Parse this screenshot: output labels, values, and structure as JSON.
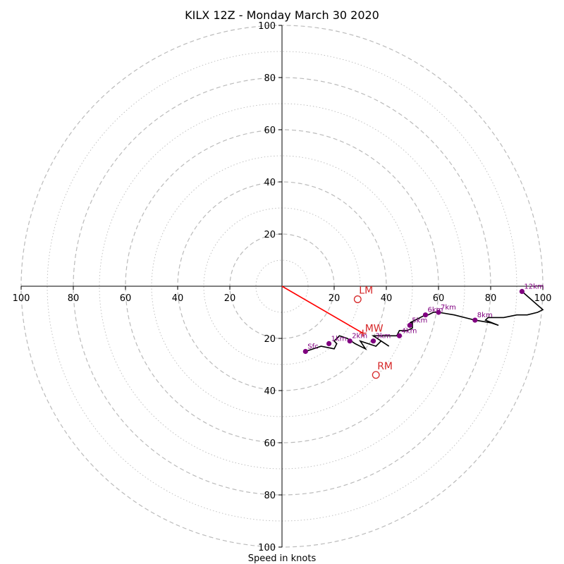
{
  "chart_data": {
    "type": "scatter",
    "title": "KILX 12Z - Monday March 30 2020",
    "xlabel": "Speed in knots",
    "ylabel": "",
    "xlim": [
      -100,
      100
    ],
    "ylim": [
      -100,
      100
    ],
    "grid": true,
    "tick_labels": {
      "x": [
        "100",
        "80",
        "60",
        "40",
        "20",
        "20",
        "40",
        "60",
        "80",
        "100"
      ],
      "y": [
        "100",
        "80",
        "60",
        "40",
        "20",
        "20",
        "40",
        "60",
        "80",
        "100"
      ]
    },
    "hodograph": {
      "x": [
        9,
        15,
        20,
        21,
        20,
        22,
        25,
        28,
        32,
        30,
        36,
        38,
        41,
        35,
        44,
        45,
        48,
        50,
        50,
        49,
        55,
        56,
        58,
        60,
        66,
        74,
        80,
        83,
        78,
        79,
        85,
        90,
        94,
        98,
        100,
        92
      ],
      "y": [
        -25,
        -23,
        -24,
        -22,
        -21,
        -19,
        -20,
        -22,
        -24,
        -21,
        -23,
        -21,
        -23,
        -19,
        -19,
        -17,
        -17,
        -16,
        -14,
        -14,
        -11,
        -11,
        -10,
        -10,
        -11,
        -13,
        -14,
        -15,
        -13,
        -12,
        -12,
        -11,
        -11,
        -10,
        -9,
        -2
      ]
    },
    "height_markers": [
      {
        "label": "Sfc",
        "x": 9,
        "y": -25
      },
      {
        "label": "1km",
        "x": 18,
        "y": -22
      },
      {
        "label": "2km",
        "x": 26,
        "y": -21
      },
      {
        "label": "3km",
        "x": 35,
        "y": -21
      },
      {
        "label": "4km",
        "x": 45,
        "y": -19
      },
      {
        "label": "5km",
        "x": 49,
        "y": -15
      },
      {
        "label": "6km",
        "x": 55,
        "y": -11
      },
      {
        "label": "7km",
        "x": 60,
        "y": -10
      },
      {
        "label": "8km",
        "x": 74,
        "y": -13
      },
      {
        "label": "12km",
        "x": 92,
        "y": -2
      }
    ],
    "storm_motion": {
      "MW": {
        "label": "MW",
        "x": 31,
        "y": -18
      },
      "LM": {
        "label": "LM",
        "x": 29,
        "y": -5
      },
      "RM": {
        "label": "RM",
        "x": 36,
        "y": -34
      }
    },
    "colors": {
      "hodograph": "#000000",
      "markers": "#800080",
      "storm_motion": "#d62728",
      "mean_wind_vector": "#ff0000",
      "grid": "#bbbbbb"
    }
  }
}
